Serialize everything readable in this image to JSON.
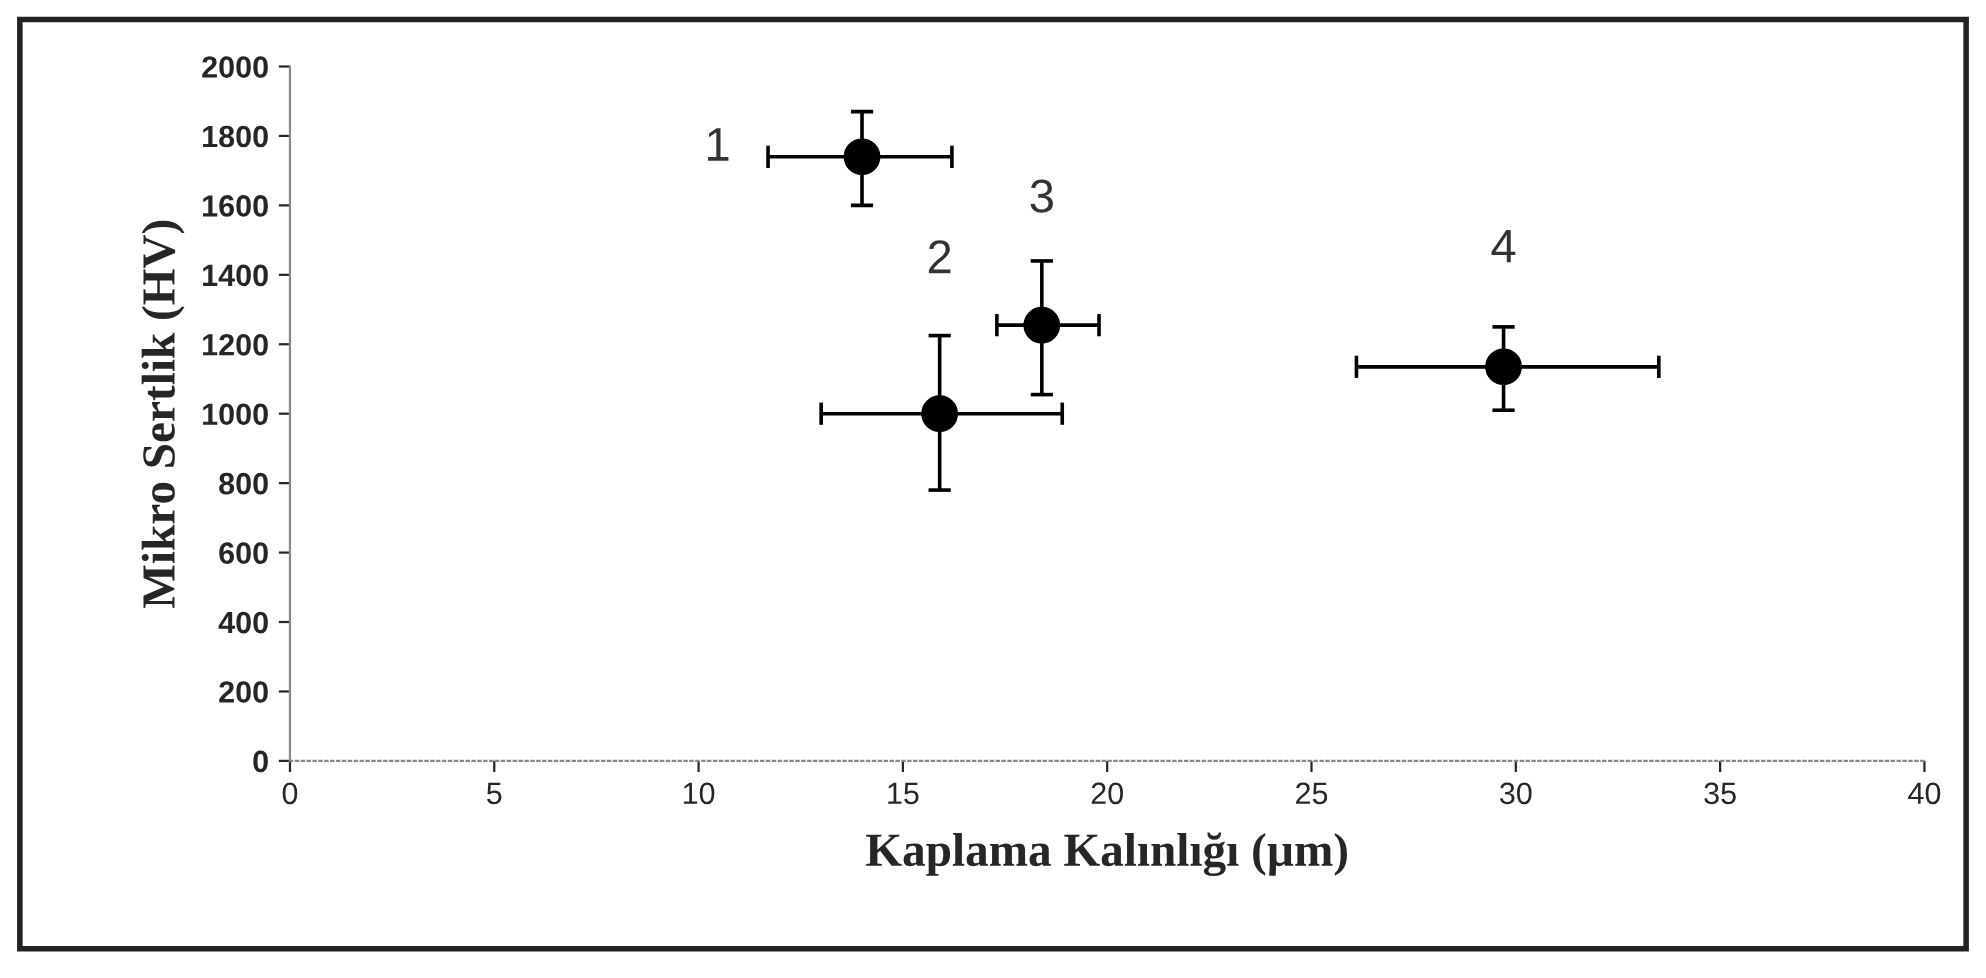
{
  "chart_data": {
    "type": "scatter",
    "xlabel": "Kaplama Kalınlığı (µm)",
    "ylabel": "Mikro Sertlik (HV)",
    "x": [
      14,
      15.9,
      18.4,
      29.7
    ],
    "values": [
      1740,
      1000,
      1255,
      1135
    ],
    "errors": [
      [
        1600,
        1870
      ],
      [
        780,
        1225
      ],
      [
        1055,
        1440
      ],
      [
        1010,
        1250
      ]
    ],
    "xerrors": [
      [
        11.7,
        16.2
      ],
      [
        13.0,
        18.9
      ],
      [
        17.3,
        19.8
      ],
      [
        26.1,
        33.5
      ]
    ],
    "color": "#000000",
    "marker": "circle",
    "xlim": [
      0,
      40
    ],
    "xticks": [
      0,
      5,
      10,
      15,
      20,
      25,
      30,
      35,
      40
    ],
    "ylim": [
      0,
      2000
    ],
    "yticks": [
      0,
      200,
      400,
      600,
      800,
      1000,
      1200,
      1400,
      1600,
      1800,
      2000
    ],
    "grid": false,
    "legend": false,
    "annotations": [
      {
        "text": "1",
        "x": 14,
        "y": 1740
      },
      {
        "text": "2",
        "x": 15.9,
        "y": 1000
      },
      {
        "text": "3",
        "x": 18.4,
        "y": 1255
      },
      {
        "text": "4",
        "x": 29.7,
        "y": 1135
      }
    ]
  }
}
